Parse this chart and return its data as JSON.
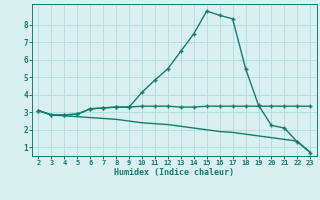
{
  "x": [
    2,
    3,
    4,
    5,
    6,
    7,
    8,
    9,
    10,
    11,
    12,
    13,
    14,
    15,
    16,
    17,
    18,
    19,
    20,
    21,
    22,
    23
  ],
  "line1": [
    3.1,
    2.85,
    2.85,
    2.9,
    3.2,
    3.25,
    3.3,
    3.3,
    3.35,
    3.35,
    3.35,
    3.3,
    3.3,
    3.35,
    3.35,
    3.35,
    3.35,
    3.35,
    3.35,
    3.35,
    3.35,
    3.35
  ],
  "line2": [
    3.1,
    2.85,
    2.85,
    2.9,
    3.2,
    3.25,
    3.3,
    3.3,
    4.15,
    4.85,
    5.5,
    6.5,
    7.5,
    8.8,
    8.55,
    8.35,
    5.5,
    3.4,
    2.25,
    2.1,
    1.3,
    0.7
  ],
  "line3": [
    3.1,
    2.85,
    2.8,
    2.75,
    2.7,
    2.65,
    2.6,
    2.5,
    2.4,
    2.35,
    2.3,
    2.2,
    2.1,
    2.0,
    1.9,
    1.85,
    1.75,
    1.65,
    1.55,
    1.45,
    1.35,
    0.7
  ],
  "color": "#1a7a6e",
  "bg_color": "#d8f0f0",
  "grid_color": "#b8dede",
  "xlabel": "Humidex (Indice chaleur)",
  "ylim": [
    0.5,
    9.2
  ],
  "xlim": [
    1.5,
    23.5
  ],
  "yticks": [
    1,
    2,
    3,
    4,
    5,
    6,
    7,
    8
  ],
  "xticks": [
    2,
    3,
    4,
    5,
    6,
    7,
    8,
    9,
    10,
    11,
    12,
    13,
    14,
    15,
    16,
    17,
    18,
    19,
    20,
    21,
    22,
    23
  ],
  "marker": "+",
  "markersize": 3.5,
  "linewidth": 1.0
}
